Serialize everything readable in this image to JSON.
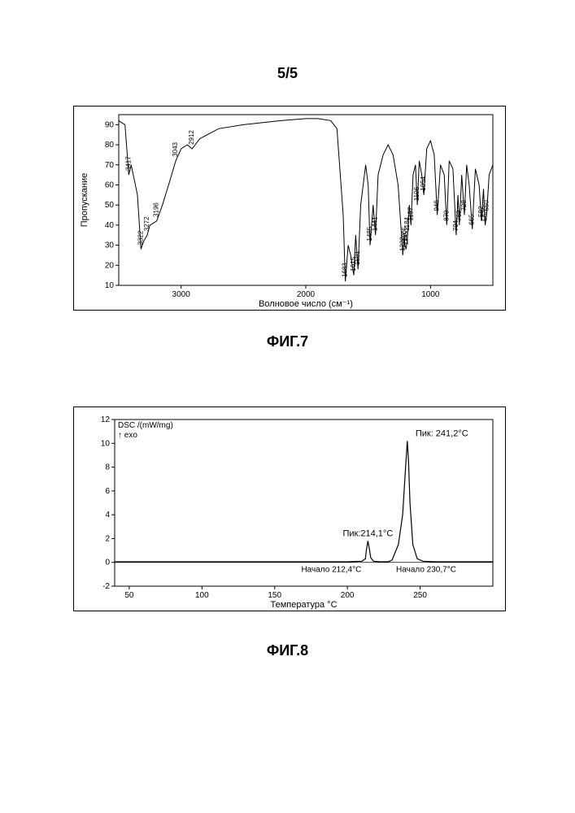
{
  "page_number": "5/5",
  "fig7": {
    "caption": "ФИГ.7",
    "type": "line",
    "xlabel": "Волновое число (см⁻¹)",
    "ylabel": "Пропускание",
    "xlim": [
      3500,
      500
    ],
    "ylim": [
      10,
      95
    ],
    "x_ticks": [
      3000,
      2000,
      1000
    ],
    "y_ticks": [
      10,
      20,
      30,
      40,
      50,
      60,
      70,
      80,
      90
    ],
    "background_color": "#ffffff",
    "line_color": "#000000",
    "border_color": "#000000",
    "peak_wavenumbers": [
      3417,
      3322,
      3272,
      3196,
      3043,
      2912,
      1683,
      1615,
      1581,
      1485,
      1441,
      1222,
      1205,
      1195,
      1184,
      1157,
      1106,
      1054,
      946,
      870,
      794,
      769,
      728,
      665,
      592,
      562,
      550
    ],
    "curve_points": [
      [
        3500,
        92
      ],
      [
        3450,
        90
      ],
      [
        3420,
        65
      ],
      [
        3400,
        70
      ],
      [
        3350,
        55
      ],
      [
        3322,
        28
      ],
      [
        3300,
        32
      ],
      [
        3272,
        35
      ],
      [
        3250,
        40
      ],
      [
        3196,
        42
      ],
      [
        3150,
        50
      ],
      [
        3100,
        60
      ],
      [
        3043,
        72
      ],
      [
        3000,
        78
      ],
      [
        2950,
        80
      ],
      [
        2912,
        78
      ],
      [
        2850,
        83
      ],
      [
        2700,
        88
      ],
      [
        2500,
        90
      ],
      [
        2200,
        92
      ],
      [
        2000,
        93
      ],
      [
        1900,
        93
      ],
      [
        1800,
        92
      ],
      [
        1750,
        88
      ],
      [
        1700,
        45
      ],
      [
        1683,
        12
      ],
      [
        1660,
        30
      ],
      [
        1640,
        25
      ],
      [
        1615,
        15
      ],
      [
        1600,
        35
      ],
      [
        1581,
        18
      ],
      [
        1560,
        50
      ],
      [
        1520,
        70
      ],
      [
        1500,
        60
      ],
      [
        1485,
        30
      ],
      [
        1460,
        50
      ],
      [
        1441,
        35
      ],
      [
        1420,
        65
      ],
      [
        1380,
        75
      ],
      [
        1340,
        80
      ],
      [
        1300,
        75
      ],
      [
        1260,
        60
      ],
      [
        1222,
        25
      ],
      [
        1210,
        35
      ],
      [
        1205,
        30
      ],
      [
        1195,
        28
      ],
      [
        1184,
        35
      ],
      [
        1170,
        50
      ],
      [
        1157,
        40
      ],
      [
        1140,
        65
      ],
      [
        1120,
        70
      ],
      [
        1106,
        50
      ],
      [
        1090,
        72
      ],
      [
        1070,
        65
      ],
      [
        1054,
        55
      ],
      [
        1030,
        78
      ],
      [
        1000,
        82
      ],
      [
        970,
        75
      ],
      [
        946,
        45
      ],
      [
        920,
        70
      ],
      [
        890,
        65
      ],
      [
        870,
        40
      ],
      [
        850,
        72
      ],
      [
        820,
        68
      ],
      [
        794,
        35
      ],
      [
        780,
        55
      ],
      [
        769,
        40
      ],
      [
        750,
        65
      ],
      [
        728,
        45
      ],
      [
        710,
        70
      ],
      [
        690,
        60
      ],
      [
        665,
        38
      ],
      [
        640,
        68
      ],
      [
        610,
        60
      ],
      [
        592,
        42
      ],
      [
        575,
        58
      ],
      [
        562,
        40
      ],
      [
        550,
        45
      ],
      [
        530,
        65
      ],
      [
        500,
        70
      ]
    ]
  },
  "fig8": {
    "caption": "ФИГ.8",
    "type": "line",
    "xlabel": "Температура °C",
    "ylabel": "DSC /(mW/mg)",
    "exo_label": "↑ exo",
    "xlim": [
      40,
      300
    ],
    "ylim": [
      -2,
      12
    ],
    "x_ticks": [
      50,
      100,
      150,
      200,
      250
    ],
    "y_ticks": [
      -2,
      0,
      2,
      4,
      6,
      8,
      10,
      12
    ],
    "background_color": "#ffffff",
    "line_color": "#000000",
    "border_color": "#000000",
    "baseline_color": "#000000",
    "peak1": {
      "label": "Пик:214,1°C",
      "onset": "Начало 212,4°C",
      "temp": 214.1,
      "height": 1.8,
      "onset_temp": 212.4
    },
    "peak2": {
      "label": "Пик: 241,2°C",
      "onset": "Начало 230,7°C",
      "temp": 241.2,
      "height": 10.2,
      "onset_temp": 230.7
    },
    "curve_points": [
      [
        40,
        0.05
      ],
      [
        80,
        0.05
      ],
      [
        120,
        0.05
      ],
      [
        160,
        0.05
      ],
      [
        200,
        0.05
      ],
      [
        210,
        0.1
      ],
      [
        212.4,
        0.3
      ],
      [
        213,
        1.0
      ],
      [
        214.1,
        1.8
      ],
      [
        215,
        1.2
      ],
      [
        216,
        0.4
      ],
      [
        218,
        0.1
      ],
      [
        222,
        0.05
      ],
      [
        228,
        0.05
      ],
      [
        230.7,
        0.2
      ],
      [
        235,
        1.5
      ],
      [
        238,
        4.0
      ],
      [
        240,
        8.0
      ],
      [
        241.2,
        10.2
      ],
      [
        242,
        8.5
      ],
      [
        243,
        5.0
      ],
      [
        245,
        1.5
      ],
      [
        248,
        0.3
      ],
      [
        252,
        0.1
      ],
      [
        260,
        0.05
      ],
      [
        280,
        0.05
      ],
      [
        300,
        0.05
      ]
    ]
  }
}
